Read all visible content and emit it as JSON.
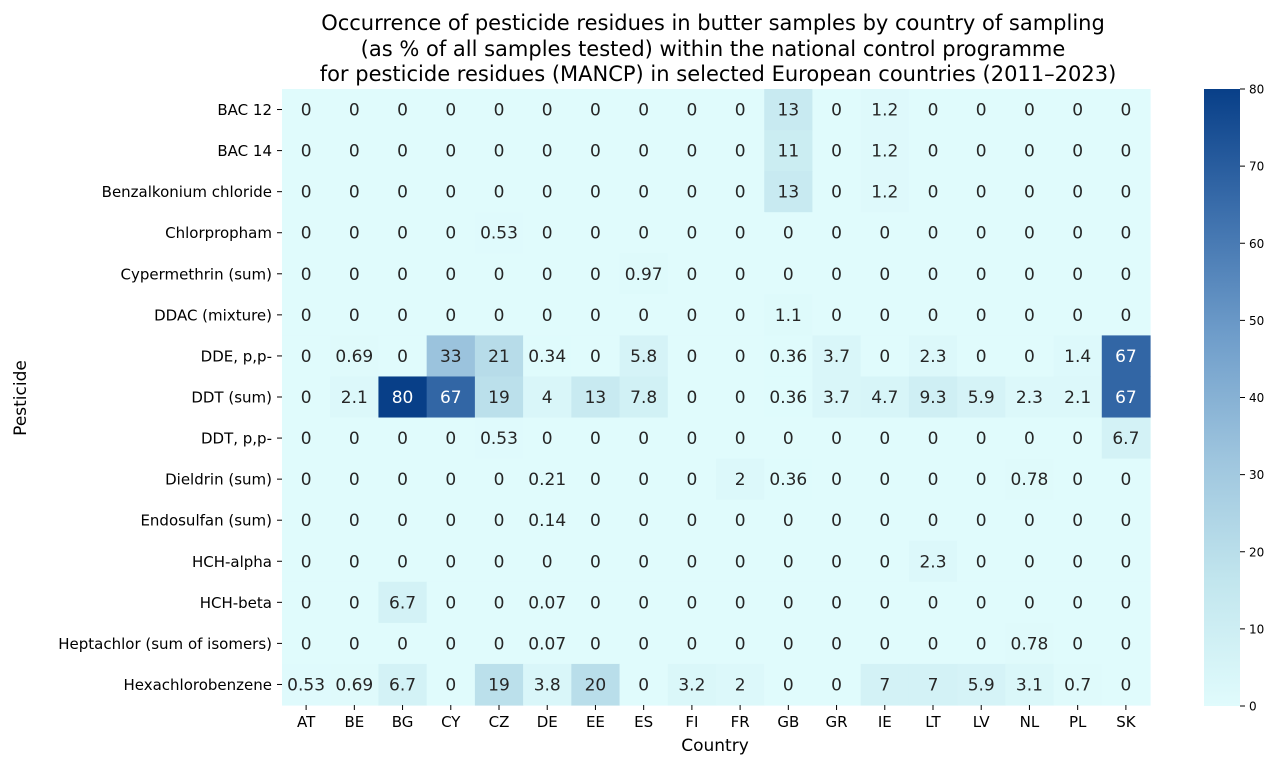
{
  "chart_data": {
    "type": "heatmap",
    "title_lines": [
      "Occurrence of pesticide residues in butter samples by country of sampling",
      "(as % of all samples tested) within the national control programme",
      "for pesticide residues (MANCP) in selected European countries (2011–2023)"
    ],
    "xlabel": "Country",
    "ylabel": "Pesticide",
    "x": [
      "AT",
      "BE",
      "BG",
      "CY",
      "CZ",
      "DE",
      "EE",
      "ES",
      "FI",
      "FR",
      "GB",
      "GR",
      "IE",
      "LT",
      "LV",
      "NL",
      "PL",
      "SK"
    ],
    "y": [
      "BAC 12",
      "BAC 14",
      "Benzalkonium chloride",
      "Chlorpropham",
      "Cypermethrin (sum)",
      "DDAC (mixture)",
      "DDE, p,p-",
      "DDT (sum)",
      "DDT, p,p-",
      "Dieldrin (sum)",
      "Endosulfan (sum)",
      "HCH-alpha",
      "HCH-beta",
      "Heptachlor (sum of isomers)",
      "Hexachlorobenzene"
    ],
    "values": [
      [
        0,
        0,
        0,
        0,
        0,
        0,
        0,
        0,
        0,
        0,
        13,
        0,
        1.2,
        0,
        0,
        0,
        0,
        0
      ],
      [
        0,
        0,
        0,
        0,
        0,
        0,
        0,
        0,
        0,
        0,
        11,
        0,
        1.2,
        0,
        0,
        0,
        0,
        0
      ],
      [
        0,
        0,
        0,
        0,
        0,
        0,
        0,
        0,
        0,
        0,
        13,
        0,
        1.2,
        0,
        0,
        0,
        0,
        0
      ],
      [
        0,
        0,
        0,
        0,
        0.53,
        0,
        0,
        0,
        0,
        0,
        0,
        0,
        0,
        0,
        0,
        0,
        0,
        0
      ],
      [
        0,
        0,
        0,
        0,
        0,
        0,
        0,
        0.97,
        0,
        0,
        0,
        0,
        0,
        0,
        0,
        0,
        0,
        0
      ],
      [
        0,
        0,
        0,
        0,
        0,
        0,
        0,
        0,
        0,
        0,
        1.1,
        0,
        0,
        0,
        0,
        0,
        0,
        0
      ],
      [
        0,
        0.69,
        0,
        33,
        21,
        0.34,
        0,
        5.8,
        0,
        0,
        0.36,
        3.7,
        0,
        2.3,
        0,
        0,
        1.4,
        67
      ],
      [
        0,
        2.1,
        80,
        67,
        19,
        4,
        13,
        7.8,
        0,
        0,
        0.36,
        3.7,
        4.7,
        9.3,
        5.9,
        2.3,
        2.1,
        67
      ],
      [
        0,
        0,
        0,
        0,
        0.53,
        0,
        0,
        0,
        0,
        0,
        0,
        0,
        0,
        0,
        0,
        0,
        0,
        6.7
      ],
      [
        0,
        0,
        0,
        0,
        0,
        0.21,
        0,
        0,
        0,
        2,
        0.36,
        0,
        0,
        0,
        0,
        0.78,
        0,
        0
      ],
      [
        0,
        0,
        0,
        0,
        0,
        0.14,
        0,
        0,
        0,
        0,
        0,
        0,
        0,
        0,
        0,
        0,
        0,
        0
      ],
      [
        0,
        0,
        0,
        0,
        0,
        0,
        0,
        0,
        0,
        0,
        0,
        0,
        0,
        2.3,
        0,
        0,
        0,
        0
      ],
      [
        0,
        0,
        6.7,
        0,
        0,
        0.07,
        0,
        0,
        0,
        0,
        0,
        0,
        0,
        0,
        0,
        0,
        0,
        0
      ],
      [
        0,
        0,
        0,
        0,
        0,
        0.07,
        0,
        0,
        0,
        0,
        0,
        0,
        0,
        0,
        0,
        0.78,
        0,
        0
      ],
      [
        0.53,
        0.69,
        6.7,
        0,
        19,
        3.8,
        20,
        0,
        3.2,
        2,
        0,
        0,
        7,
        7,
        5.9,
        3.1,
        0.7,
        0
      ]
    ],
    "value_labels": [
      [
        "0",
        "0",
        "0",
        "0",
        "0",
        "0",
        "0",
        "0",
        "0",
        "0",
        "13",
        "0",
        "1.2",
        "0",
        "0",
        "0",
        "0",
        "0"
      ],
      [
        "0",
        "0",
        "0",
        "0",
        "0",
        "0",
        "0",
        "0",
        "0",
        "0",
        "11",
        "0",
        "1.2",
        "0",
        "0",
        "0",
        "0",
        "0"
      ],
      [
        "0",
        "0",
        "0",
        "0",
        "0",
        "0",
        "0",
        "0",
        "0",
        "0",
        "13",
        "0",
        "1.2",
        "0",
        "0",
        "0",
        "0",
        "0"
      ],
      [
        "0",
        "0",
        "0",
        "0",
        "0.53",
        "0",
        "0",
        "0",
        "0",
        "0",
        "0",
        "0",
        "0",
        "0",
        "0",
        "0",
        "0",
        "0"
      ],
      [
        "0",
        "0",
        "0",
        "0",
        "0",
        "0",
        "0",
        "0.97",
        "0",
        "0",
        "0",
        "0",
        "0",
        "0",
        "0",
        "0",
        "0",
        "0"
      ],
      [
        "0",
        "0",
        "0",
        "0",
        "0",
        "0",
        "0",
        "0",
        "0",
        "0",
        "1.1",
        "0",
        "0",
        "0",
        "0",
        "0",
        "0",
        "0"
      ],
      [
        "0",
        "0.69",
        "0",
        "33",
        "21",
        "0.34",
        "0",
        "5.8",
        "0",
        "0",
        "0.36",
        "3.7",
        "0",
        "2.3",
        "0",
        "0",
        "1.4",
        "67"
      ],
      [
        "0",
        "2.1",
        "80",
        "67",
        "19",
        "4",
        "13",
        "7.8",
        "0",
        "0",
        "0.36",
        "3.7",
        "4.7",
        "9.3",
        "5.9",
        "2.3",
        "2.1",
        "67"
      ],
      [
        "0",
        "0",
        "0",
        "0",
        "0.53",
        "0",
        "0",
        "0",
        "0",
        "0",
        "0",
        "0",
        "0",
        "0",
        "0",
        "0",
        "0",
        "6.7"
      ],
      [
        "0",
        "0",
        "0",
        "0",
        "0",
        "0.21",
        "0",
        "0",
        "0",
        "2",
        "0.36",
        "0",
        "0",
        "0",
        "0",
        "0.78",
        "0",
        "0"
      ],
      [
        "0",
        "0",
        "0",
        "0",
        "0",
        "0.14",
        "0",
        "0",
        "0",
        "0",
        "0",
        "0",
        "0",
        "0",
        "0",
        "0",
        "0",
        "0"
      ],
      [
        "0",
        "0",
        "0",
        "0",
        "0",
        "0",
        "0",
        "0",
        "0",
        "0",
        "0",
        "0",
        "0",
        "2.3",
        "0",
        "0",
        "0",
        "0"
      ],
      [
        "0",
        "0",
        "6.7",
        "0",
        "0",
        "0.07",
        "0",
        "0",
        "0",
        "0",
        "0",
        "0",
        "0",
        "0",
        "0",
        "0",
        "0",
        "0"
      ],
      [
        "0",
        "0",
        "0",
        "0",
        "0",
        "0.07",
        "0",
        "0",
        "0",
        "0",
        "0",
        "0",
        "0",
        "0",
        "0",
        "0.78",
        "0",
        "0"
      ],
      [
        "0.53",
        "0.69",
        "6.7",
        "0",
        "19",
        "3.8",
        "20",
        "0",
        "3.2",
        "2",
        "0",
        "0",
        "7",
        "7",
        "5.9",
        "3.1",
        "0.7",
        "0"
      ]
    ],
    "color_range": [
      0,
      80
    ],
    "colorbar_ticks": [
      "0",
      "10",
      "20",
      "30",
      "40",
      "50",
      "60",
      "70",
      "80"
    ],
    "colormap_stops": [
      "#e0fbfc",
      "#c2e6ee",
      "#9ec5de",
      "#6f9dca",
      "#3c6fac",
      "#083f88"
    ],
    "light_text_threshold": 45,
    "text_colors": {
      "dark": "#262626",
      "light": "#ffffff"
    },
    "grid": false,
    "legend": "colorbar-right"
  }
}
